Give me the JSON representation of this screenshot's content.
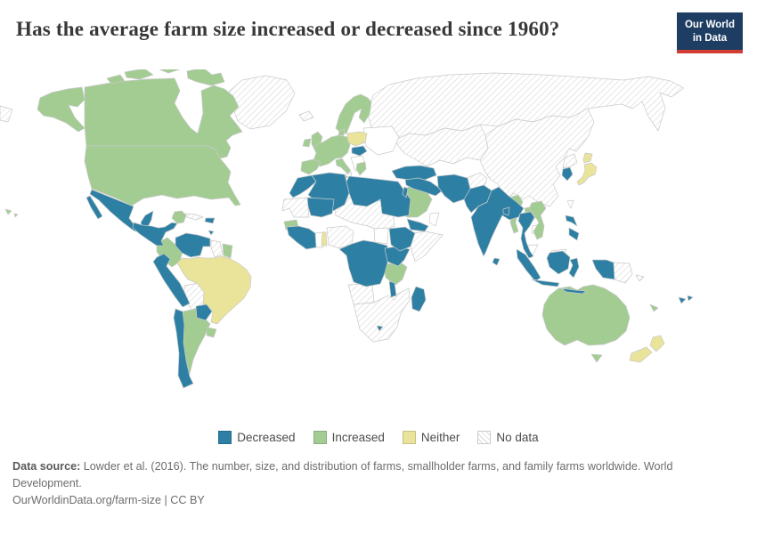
{
  "header": {
    "title": "Has the average farm size increased or decreased since 1960?",
    "logo_line1": "Our World",
    "logo_line2": "in Data"
  },
  "footer": {
    "source_label": "Data source:",
    "source_text": "Lowder et al. (2016). The number, size, and distribution of farms, smallholder farms, and family farms worldwide. World Development.",
    "link_text": "OurWorldinData.org/farm-size | CC BY"
  },
  "colors": {
    "decreased": "#2d80a4",
    "increased": "#a2cc92",
    "neither": "#e9e49a",
    "no_data_line": "#d9d9d9",
    "border": "#c9c9c9",
    "white_region": "#ffffff",
    "logo_navy": "#1d3d63",
    "logo_red": "#d33d33"
  },
  "chart_data": {
    "type": "choropleth",
    "title": "Has the average farm size increased or decreased since 1960?",
    "legend_items": [
      {
        "label": "Decreased",
        "key": "decreased"
      },
      {
        "label": "Increased",
        "key": "increased"
      },
      {
        "label": "Neither",
        "key": "neither"
      },
      {
        "label": "No data",
        "key": "no-data"
      }
    ],
    "regions": [
      {
        "id": "russia",
        "name": "Russia",
        "category": "no-data"
      },
      {
        "id": "chukotka",
        "name": "Russia (far east sliver)",
        "category": "no-data"
      },
      {
        "id": "central-asia",
        "name": "Kazakhstan & Central Asia",
        "category": "no-data"
      },
      {
        "id": "china-mongolia",
        "name": "China & Mongolia",
        "category": "no-data"
      },
      {
        "id": "north-korea",
        "name": "North Korea",
        "category": "no-data"
      },
      {
        "id": "afghanistan",
        "name": "Afghanistan",
        "category": "no-data"
      },
      {
        "id": "greenland",
        "name": "Greenland",
        "category": "no-data"
      },
      {
        "id": "iceland",
        "name": "Iceland",
        "category": "no-data"
      },
      {
        "id": "cuba",
        "name": "Cuba",
        "category": "no-data"
      },
      {
        "id": "guyana",
        "name": "Guyana",
        "category": "no-data"
      },
      {
        "id": "bolivia",
        "name": "Bolivia",
        "category": "no-data"
      },
      {
        "id": "mauritania",
        "name": "Mauritania & Western Sahara",
        "category": "no-data"
      },
      {
        "id": "sahara-belt",
        "name": "Niger, Chad & Sudan",
        "category": "no-data"
      },
      {
        "id": "nigeria",
        "name": "Nigeria",
        "category": "no-data"
      },
      {
        "id": "somalia",
        "name": "Somalia",
        "category": "no-data"
      },
      {
        "id": "angola",
        "name": "Angola",
        "category": "no-data"
      },
      {
        "id": "southern-africa",
        "name": "Southern Africa",
        "category": "no-data"
      },
      {
        "id": "papua-new-guinea",
        "name": "Papua New Guinea",
        "category": "no-data"
      },
      {
        "id": "solomon-islands",
        "name": "Solomon Islands",
        "category": "no-data"
      },
      {
        "id": "ukraine-belarus",
        "name": "Ukraine & Belarus",
        "category": "no-data-plain"
      },
      {
        "id": "balkans",
        "name": "Balkans",
        "category": "no-data-plain"
      },
      {
        "id": "tunisia",
        "name": "Tunisia",
        "category": "no-data-plain"
      },
      {
        "id": "oman",
        "name": "Oman",
        "category": "no-data-plain"
      },
      {
        "id": "cambodia",
        "name": "Cambodia",
        "category": "no-data-plain"
      },
      {
        "id": "malaysia-peninsula",
        "name": "Malaysia (peninsula)",
        "category": "no-data-plain"
      },
      {
        "id": "malaysia-borneo",
        "name": "Malaysia (Borneo)",
        "category": "no-data-plain"
      },
      {
        "id": "south-sudan",
        "name": "South Sudan",
        "category": "no-data-plain"
      },
      {
        "id": "ghana",
        "name": "Ghana",
        "category": "no-data-plain"
      },
      {
        "id": "taiwan",
        "name": "Taiwan",
        "category": "no-data-plain"
      },
      {
        "id": "canada",
        "name": "Canada",
        "category": "increased"
      },
      {
        "id": "canadian-arctic",
        "name": "Canada (Arctic islands)",
        "category": "increased"
      },
      {
        "id": "alaska",
        "name": "United States (Alaska)",
        "category": "increased"
      },
      {
        "id": "usa",
        "name": "United States",
        "category": "increased"
      },
      {
        "id": "hawaii",
        "name": "United States (Hawaii)",
        "category": "increased"
      },
      {
        "id": "yucatan-belize",
        "name": "Yucatán & Belize",
        "category": "increased"
      },
      {
        "id": "colombia",
        "name": "Colombia",
        "category": "increased"
      },
      {
        "id": "suriname",
        "name": "Suriname & French Guiana",
        "category": "increased"
      },
      {
        "id": "argentina",
        "name": "Argentina",
        "category": "increased"
      },
      {
        "id": "uruguay",
        "name": "Uruguay",
        "category": "increased"
      },
      {
        "id": "uk",
        "name": "United Kingdom",
        "category": "increased"
      },
      {
        "id": "ireland",
        "name": "Ireland",
        "category": "increased"
      },
      {
        "id": "scandinavia",
        "name": "Norway, Sweden & Finland",
        "category": "increased"
      },
      {
        "id": "denmark",
        "name": "Denmark",
        "category": "increased"
      },
      {
        "id": "west-europe",
        "name": "Western & Central Europe",
        "category": "increased"
      },
      {
        "id": "iberia",
        "name": "Spain & Portugal",
        "category": "increased"
      },
      {
        "id": "italy",
        "name": "Italy",
        "category": "increased"
      },
      {
        "id": "greece",
        "name": "Greece",
        "category": "increased"
      },
      {
        "id": "saudi-arabia",
        "name": "Saudi Arabia",
        "category": "increased"
      },
      {
        "id": "senegal",
        "name": "Senegal",
        "category": "increased"
      },
      {
        "id": "tanzania",
        "name": "Tanzania",
        "category": "increased"
      },
      {
        "id": "myanmar",
        "name": "Myanmar",
        "category": "increased"
      },
      {
        "id": "laos",
        "name": "Laos",
        "category": "increased"
      },
      {
        "id": "vietnam",
        "name": "Vietnam",
        "category": "increased"
      },
      {
        "id": "australia",
        "name": "Australia",
        "category": "increased"
      },
      {
        "id": "tasmania",
        "name": "Tasmania",
        "category": "increased"
      },
      {
        "id": "new-caledonia",
        "name": "New Caledonia",
        "category": "increased"
      },
      {
        "id": "mexico",
        "name": "Mexico",
        "category": "decreased"
      },
      {
        "id": "central-america",
        "name": "Central America",
        "category": "decreased"
      },
      {
        "id": "hispaniola",
        "name": "Dominican Republic & Haiti",
        "category": "decreased"
      },
      {
        "id": "trinidad",
        "name": "Trinidad and Tobago",
        "category": "decreased"
      },
      {
        "id": "venezuela",
        "name": "Venezuela",
        "category": "decreased"
      },
      {
        "id": "peru",
        "name": "Peru & Ecuador",
        "category": "decreased"
      },
      {
        "id": "chile",
        "name": "Chile",
        "category": "decreased"
      },
      {
        "id": "paraguay",
        "name": "Paraguay",
        "category": "decreased"
      },
      {
        "id": "morocco",
        "name": "Morocco",
        "category": "decreased"
      },
      {
        "id": "algeria",
        "name": "Algeria",
        "category": "decreased"
      },
      {
        "id": "libya-egypt",
        "name": "Libya & Egypt",
        "category": "decreased"
      },
      {
        "id": "mali",
        "name": "Mali",
        "category": "decreased"
      },
      {
        "id": "west-africa-coast",
        "name": "Guinea & Côte d'Ivoire",
        "category": "decreased"
      },
      {
        "id": "central-africa",
        "name": "DR Congo & Central Africa",
        "category": "decreased"
      },
      {
        "id": "uganda-kenya",
        "name": "Uganda & Kenya",
        "category": "decreased"
      },
      {
        "id": "ethiopia",
        "name": "Ethiopia",
        "category": "decreased"
      },
      {
        "id": "yemen",
        "name": "Yemen",
        "category": "decreased"
      },
      {
        "id": "madagascar",
        "name": "Madagascar",
        "category": "decreased"
      },
      {
        "id": "malawi",
        "name": "Malawi",
        "category": "decreased"
      },
      {
        "id": "turkey",
        "name": "Turkey",
        "category": "decreased"
      },
      {
        "id": "levant-iraq",
        "name": "Iraq & Levant",
        "category": "decreased"
      },
      {
        "id": "iran",
        "name": "Iran",
        "category": "decreased"
      },
      {
        "id": "pakistan",
        "name": "Pakistan",
        "category": "decreased"
      },
      {
        "id": "india",
        "name": "India",
        "category": "decreased"
      },
      {
        "id": "bangladesh",
        "name": "Bangladesh",
        "category": "decreased"
      },
      {
        "id": "sri-lanka",
        "name": "Sri Lanka",
        "category": "decreased"
      },
      {
        "id": "thailand",
        "name": "Thailand",
        "category": "decreased"
      },
      {
        "id": "south-korea",
        "name": "South Korea",
        "category": "decreased"
      },
      {
        "id": "indonesia",
        "name": "Indonesia",
        "category": "decreased"
      },
      {
        "id": "philippines",
        "name": "Philippines",
        "category": "decreased"
      },
      {
        "id": "fiji",
        "name": "Fiji",
        "category": "decreased"
      },
      {
        "id": "romania-hungary",
        "name": "Hungary & Romania",
        "category": "decreased"
      },
      {
        "id": "brazil",
        "name": "Brazil",
        "category": "neither"
      },
      {
        "id": "poland",
        "name": "Poland",
        "category": "neither"
      },
      {
        "id": "togo",
        "name": "Togo",
        "category": "neither"
      },
      {
        "id": "japan",
        "name": "Japan",
        "category": "neither"
      },
      {
        "id": "new-zealand",
        "name": "New Zealand",
        "category": "neither"
      },
      {
        "id": "lesotho",
        "name": "Lesotho",
        "category": "decreased"
      }
    ]
  }
}
